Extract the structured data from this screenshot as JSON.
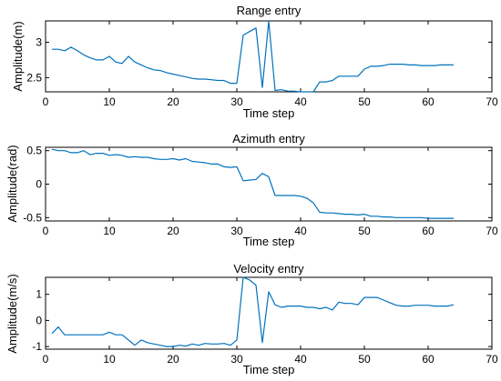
{
  "chart_data": [
    {
      "type": "line",
      "title": "Range entry",
      "xlabel": "Time step",
      "ylabel": "Amplitude(m)",
      "xlim": [
        0,
        70
      ],
      "ylim": [
        2.3,
        3.3
      ],
      "xticks": [
        0,
        10,
        20,
        30,
        40,
        50,
        60,
        70
      ],
      "yticks": [
        2.5,
        3
      ],
      "color": "#0072BD",
      "x": [
        1,
        2,
        3,
        4,
        5,
        6,
        7,
        8,
        9,
        10,
        11,
        12,
        13,
        14,
        15,
        16,
        17,
        18,
        19,
        20,
        21,
        22,
        23,
        24,
        25,
        26,
        27,
        28,
        29,
        30,
        31,
        32,
        33,
        34,
        35,
        36,
        37,
        38,
        39,
        40,
        41,
        42,
        43,
        44,
        45,
        46,
        47,
        48,
        49,
        50,
        51,
        52,
        53,
        54,
        55,
        56,
        57,
        58,
        59,
        60,
        61,
        62,
        63,
        64
      ],
      "y": [
        2.9,
        2.9,
        2.88,
        2.93,
        2.88,
        2.82,
        2.78,
        2.75,
        2.75,
        2.8,
        2.72,
        2.7,
        2.8,
        2.72,
        2.68,
        2.64,
        2.61,
        2.6,
        2.57,
        2.55,
        2.53,
        2.51,
        2.49,
        2.48,
        2.48,
        2.47,
        2.46,
        2.46,
        2.42,
        2.42,
        3.1,
        3.15,
        3.2,
        2.36,
        3.3,
        2.32,
        2.33,
        2.31,
        2.31,
        2.3,
        2.3,
        2.3,
        2.44,
        2.44,
        2.46,
        2.52,
        2.52,
        2.52,
        2.52,
        2.62,
        2.66,
        2.66,
        2.67,
        2.69,
        2.69,
        2.69,
        2.68,
        2.68,
        2.67,
        2.67,
        2.67,
        2.68,
        2.68,
        2.68
      ]
    },
    {
      "type": "line",
      "title": "Azimuth entry",
      "xlabel": "Time step",
      "ylabel": "Amplitude(rad)",
      "xlim": [
        0,
        70
      ],
      "ylim": [
        -0.55,
        0.55
      ],
      "xticks": [
        0,
        10,
        20,
        30,
        40,
        50,
        60,
        70
      ],
      "yticks": [
        -0.5,
        0,
        0.5
      ],
      "color": "#0072BD",
      "x": [
        1,
        2,
        3,
        4,
        5,
        6,
        7,
        8,
        9,
        10,
        11,
        12,
        13,
        14,
        15,
        16,
        17,
        18,
        19,
        20,
        21,
        22,
        23,
        24,
        25,
        26,
        27,
        28,
        29,
        30,
        31,
        32,
        33,
        34,
        35,
        36,
        37,
        38,
        39,
        40,
        41,
        42,
        43,
        44,
        45,
        46,
        47,
        48,
        49,
        50,
        51,
        52,
        53,
        54,
        55,
        56,
        57,
        58,
        59,
        60,
        61,
        62,
        63,
        64
      ],
      "y": [
        0.52,
        0.5,
        0.5,
        0.47,
        0.47,
        0.5,
        0.44,
        0.46,
        0.46,
        0.43,
        0.44,
        0.43,
        0.4,
        0.41,
        0.4,
        0.4,
        0.38,
        0.37,
        0.37,
        0.38,
        0.36,
        0.38,
        0.34,
        0.33,
        0.32,
        0.3,
        0.3,
        0.26,
        0.25,
        0.26,
        0.05,
        0.06,
        0.07,
        0.16,
        0.11,
        -0.17,
        -0.17,
        -0.17,
        -0.17,
        -0.18,
        -0.21,
        -0.28,
        -0.42,
        -0.43,
        -0.43,
        -0.44,
        -0.45,
        -0.45,
        -0.46,
        -0.45,
        -0.48,
        -0.48,
        -0.49,
        -0.49,
        -0.5,
        -0.5,
        -0.5,
        -0.5,
        -0.5,
        -0.51,
        -0.51,
        -0.51,
        -0.51,
        -0.51
      ]
    },
    {
      "type": "line",
      "title": "Velocity entry",
      "xlabel": "Time step",
      "ylabel": "Amplitude(m/s)",
      "xlim": [
        0,
        70
      ],
      "ylim": [
        -1.1,
        1.65
      ],
      "xticks": [
        0,
        10,
        20,
        30,
        40,
        50,
        60,
        70
      ],
      "yticks": [
        -1,
        0,
        1
      ],
      "color": "#0072BD",
      "x": [
        1,
        2,
        3,
        4,
        5,
        6,
        7,
        8,
        9,
        10,
        11,
        12,
        13,
        14,
        15,
        16,
        17,
        18,
        19,
        20,
        21,
        22,
        23,
        24,
        25,
        26,
        27,
        28,
        29,
        30,
        31,
        32,
        33,
        34,
        35,
        36,
        37,
        38,
        39,
        40,
        41,
        42,
        43,
        44,
        45,
        46,
        47,
        48,
        49,
        50,
        51,
        52,
        53,
        54,
        55,
        56,
        57,
        58,
        59,
        60,
        61,
        62,
        63,
        64
      ],
      "y": [
        -0.5,
        -0.25,
        -0.55,
        -0.55,
        -0.55,
        -0.55,
        -0.55,
        -0.55,
        -0.55,
        -0.45,
        -0.55,
        -0.55,
        -0.75,
        -0.95,
        -0.75,
        -0.85,
        -0.9,
        -0.95,
        -1.0,
        -1.0,
        -0.95,
        -0.98,
        -0.9,
        -0.95,
        -0.88,
        -0.9,
        -0.9,
        -0.88,
        -0.95,
        -0.75,
        1.65,
        1.55,
        1.35,
        -0.85,
        1.1,
        0.6,
        0.5,
        0.55,
        0.55,
        0.55,
        0.5,
        0.5,
        0.45,
        0.5,
        0.4,
        0.7,
        0.65,
        0.65,
        0.6,
        0.88,
        0.88,
        0.88,
        0.78,
        0.68,
        0.58,
        0.55,
        0.55,
        0.58,
        0.58,
        0.58,
        0.55,
        0.55,
        0.55,
        0.6
      ]
    }
  ]
}
